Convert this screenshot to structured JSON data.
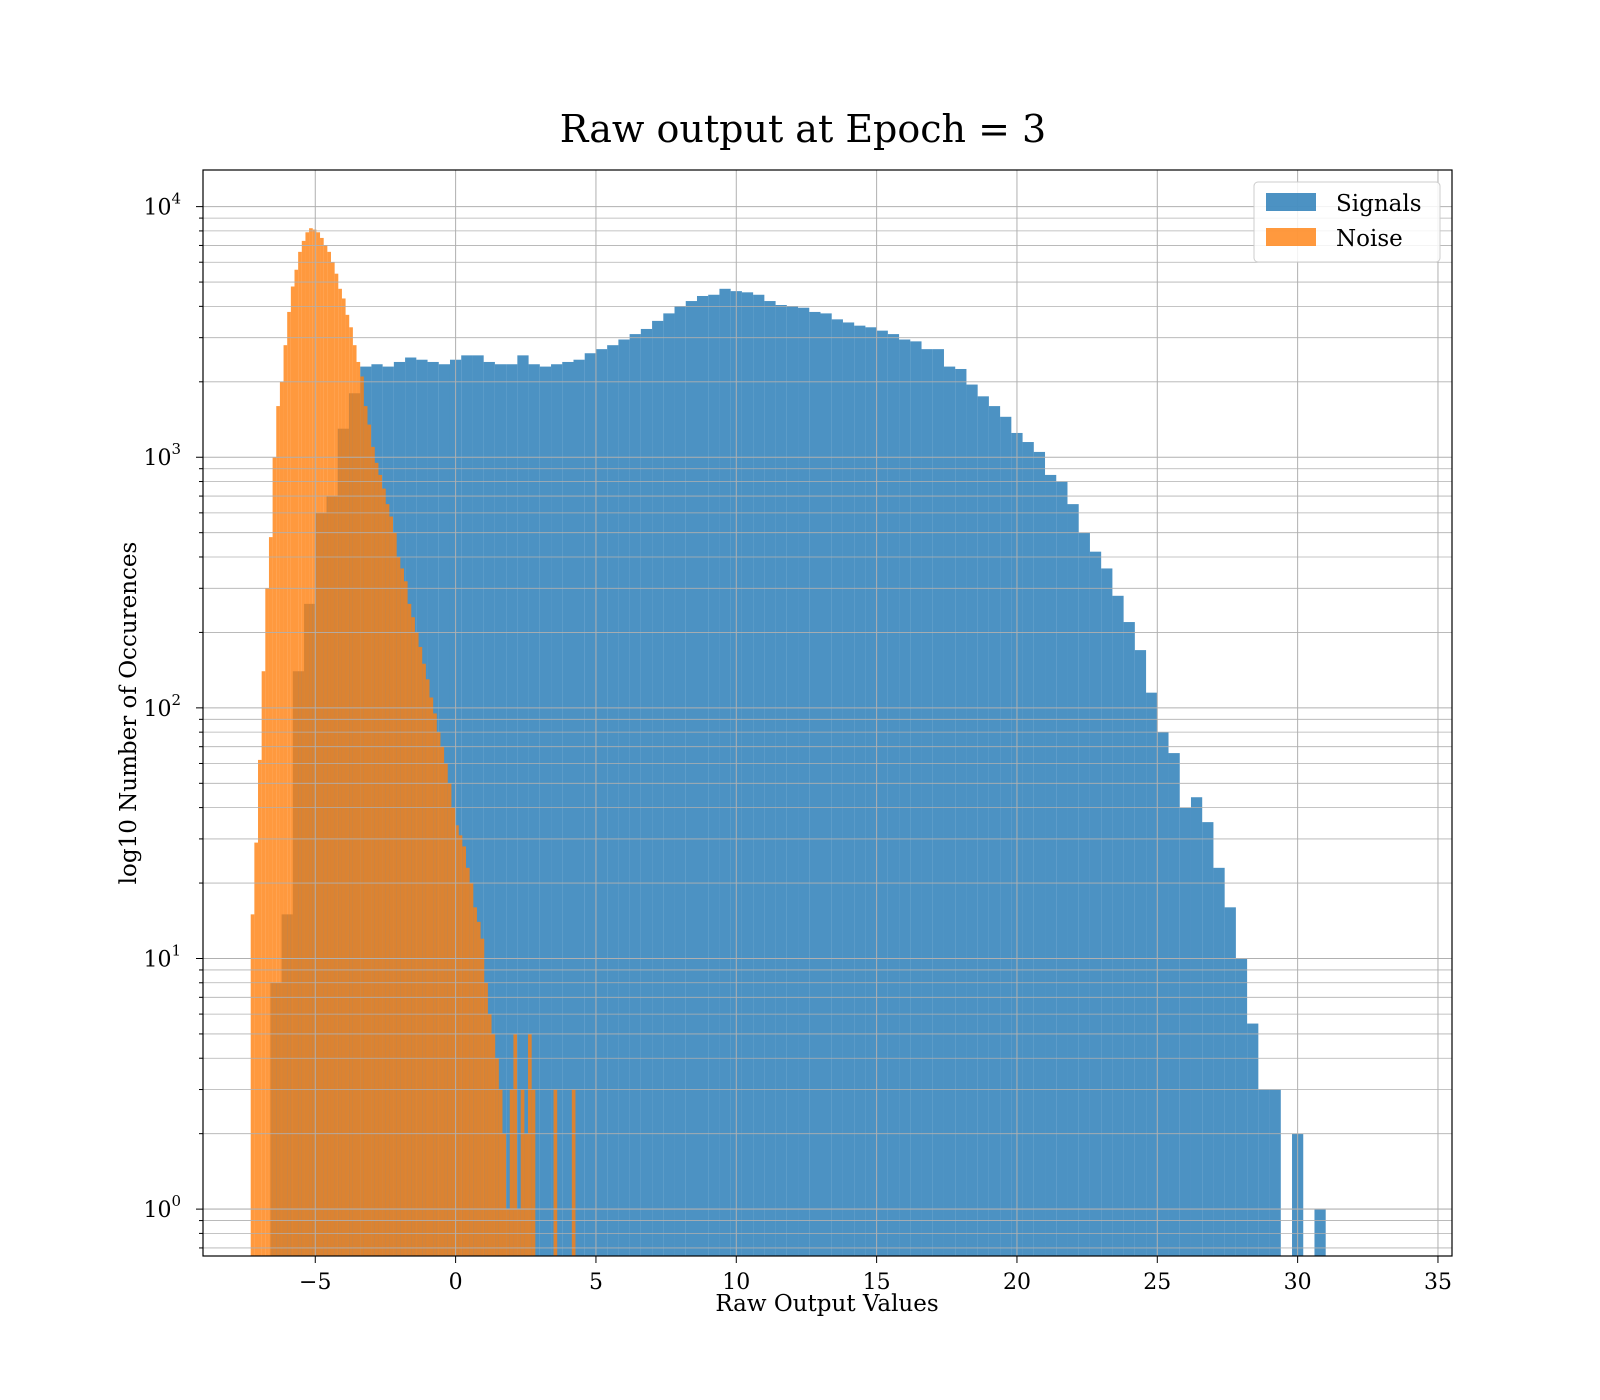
{
  "chart_data": {
    "type": "bar",
    "title": "Raw output at Epoch = 3",
    "xlabel": "Raw Output Values",
    "ylabel": "log10 Number of Occurences",
    "xlim": [
      -9,
      35.5
    ],
    "ylim": [
      0.65,
      14000
    ],
    "yscale": "log",
    "grid": true,
    "legend_position": "top-right",
    "x_ticks": [
      {
        "value": -5,
        "label": "−5"
      },
      {
        "value": 0,
        "label": "0"
      },
      {
        "value": 5,
        "label": "5"
      },
      {
        "value": 10,
        "label": "10"
      },
      {
        "value": 15,
        "label": "15"
      },
      {
        "value": 20,
        "label": "20"
      },
      {
        "value": 25,
        "label": "25"
      },
      {
        "value": 30,
        "label": "30"
      },
      {
        "value": 35,
        "label": "35"
      }
    ],
    "y_ticks": [
      {
        "value": 1,
        "base": "10",
        "exp": "0"
      },
      {
        "value": 10,
        "base": "10",
        "exp": "1"
      },
      {
        "value": 100,
        "base": "10",
        "exp": "2"
      },
      {
        "value": 1000,
        "base": "10",
        "exp": "3"
      },
      {
        "value": 10000,
        "base": "10",
        "exp": "4"
      }
    ],
    "series": [
      {
        "name": "Signals",
        "color": "#1f77b4",
        "alpha": 0.8,
        "bin_start": -6.6,
        "bin_width": 0.4,
        "values": [
          8,
          15,
          140,
          260,
          600,
          700,
          1300,
          1800,
          2300,
          2350,
          2300,
          2400,
          2500,
          2450,
          2400,
          2350,
          2450,
          2550,
          2550,
          2400,
          2350,
          2350,
          2550,
          2350,
          2300,
          2350,
          2400,
          2450,
          2600,
          2700,
          2800,
          2950,
          3100,
          3250,
          3500,
          3750,
          4000,
          4200,
          4400,
          4450,
          4700,
          4600,
          4550,
          4450,
          4200,
          4050,
          4000,
          3950,
          3800,
          3750,
          3550,
          3450,
          3350,
          3300,
          3200,
          3100,
          2950,
          2900,
          2700,
          2700,
          2300,
          2250,
          1950,
          1750,
          1600,
          1450,
          1250,
          1150,
          1050,
          850,
          800,
          650,
          500,
          420,
          360,
          280,
          220,
          170,
          115,
          80,
          66,
          40,
          44,
          35,
          23,
          16,
          10,
          5.5,
          3,
          3,
          0,
          2,
          0,
          1
        ],
        "bin_start_note": ""
      },
      {
        "name": "Noise",
        "color": "#ff7f0e",
        "alpha": 0.8,
        "bin_start": -7.3,
        "bin_width": 0.13,
        "values": [
          15,
          29,
          62,
          140,
          300,
          480,
          1000,
          1600,
          2000,
          2800,
          3800,
          4800,
          5600,
          6600,
          7300,
          7900,
          8200,
          8100,
          7900,
          7500,
          7000,
          6600,
          6000,
          5400,
          4700,
          4300,
          3700,
          3300,
          2800,
          2400,
          2100,
          1600,
          1350,
          1100,
          950,
          850,
          750,
          650,
          580,
          500,
          400,
          360,
          320,
          260,
          230,
          200,
          175,
          150,
          130,
          110,
          95,
          80,
          70,
          60,
          50,
          40,
          34,
          31,
          28,
          23,
          20,
          16,
          14,
          12,
          8,
          6,
          5,
          4,
          3,
          2,
          1,
          3,
          5,
          1,
          3,
          2,
          5,
          3,
          0,
          0,
          0,
          0,
          0,
          3,
          0,
          0,
          0,
          0,
          3
        ]
      }
    ]
  }
}
